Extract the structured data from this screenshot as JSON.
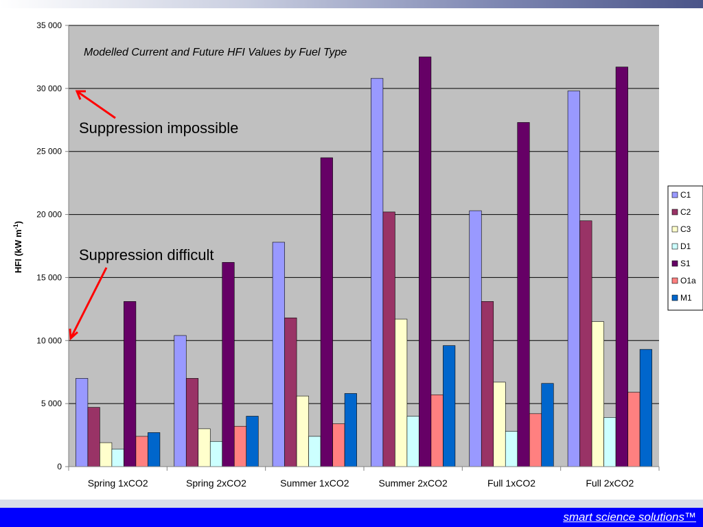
{
  "footer": {
    "brand": "smart science solutions™"
  },
  "annotations": {
    "impossible": "Suppression impossible",
    "difficult": "Suppression difficult"
  },
  "colors": {
    "plot_bg": "#c0c0c0",
    "arrow": "#ff0000",
    "footer_bar": "#0000ff"
  },
  "chart_data": {
    "type": "bar",
    "title": "Modelled Current and Future HFI Values by Fuel Type",
    "ylabel": "HFI (kW m-1)",
    "ylabel_main": "HFI (kW m",
    "ylabel_sup": "-1",
    "ylabel_close": ")",
    "ylim": [
      0,
      35000
    ],
    "yticks": [
      0,
      5000,
      10000,
      15000,
      20000,
      25000,
      30000,
      35000
    ],
    "ytick_labels": [
      "0",
      "5 000",
      "10 000",
      "15 000",
      "20 000",
      "25 000",
      "30 000",
      "35 000"
    ],
    "grid": true,
    "legend_position": "right",
    "categories": [
      "Spring 1xCO2",
      "Spring 2xCO2",
      "Summer 1xCO2",
      "Summer 2xCO2",
      "Full 1xCO2",
      "Full 2xCO2"
    ],
    "series": [
      {
        "name": "C1",
        "color": "#9999ff",
        "values": [
          7000,
          10400,
          17800,
          30800,
          20300,
          29800
        ]
      },
      {
        "name": "C2",
        "color": "#993366",
        "values": [
          4700,
          7000,
          11800,
          20200,
          13100,
          19500
        ]
      },
      {
        "name": "C3",
        "color": "#ffffcc",
        "values": [
          1900,
          3000,
          5600,
          11700,
          6700,
          11500
        ]
      },
      {
        "name": "D1",
        "color": "#ccffff",
        "values": [
          1400,
          2000,
          2400,
          4000,
          2800,
          3900
        ]
      },
      {
        "name": "S1",
        "color": "#660066",
        "values": [
          13100,
          16200,
          24500,
          32500,
          27300,
          31700
        ]
      },
      {
        "name": "O1a",
        "color": "#ff8080",
        "values": [
          2400,
          3200,
          3400,
          5700,
          4200,
          5900
        ]
      },
      {
        "name": "M1",
        "color": "#0066cc",
        "values": [
          2700,
          4000,
          5800,
          9600,
          6600,
          9300
        ]
      }
    ]
  }
}
